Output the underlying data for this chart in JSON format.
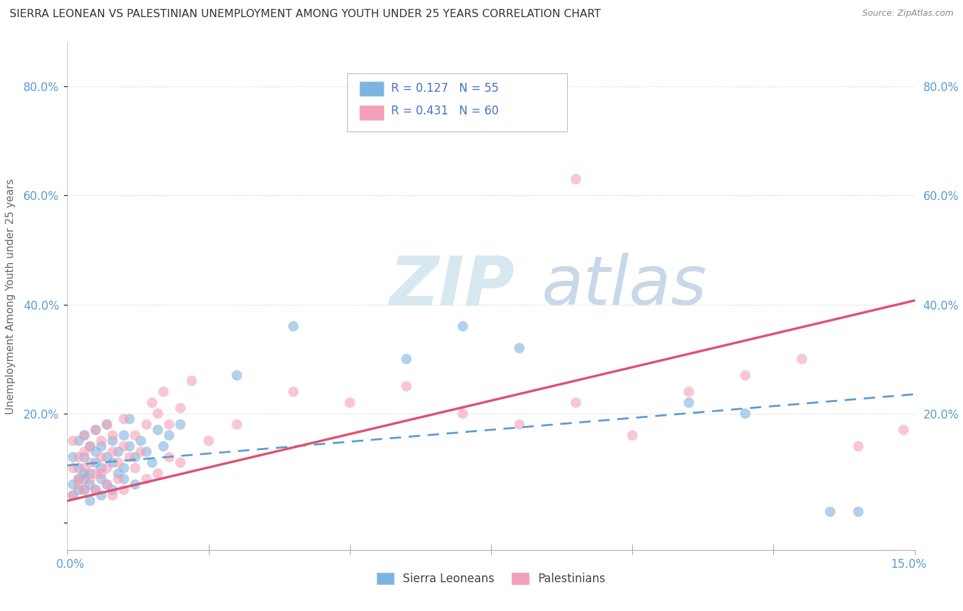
{
  "title": "SIERRA LEONEAN VS PALESTINIAN UNEMPLOYMENT AMONG YOUTH UNDER 25 YEARS CORRELATION CHART",
  "source": "Source: ZipAtlas.com",
  "ylabel": "Unemployment Among Youth under 25 years",
  "xlim": [
    0.0,
    0.15
  ],
  "ylim": [
    -0.05,
    0.88
  ],
  "yticks": [
    0.0,
    0.2,
    0.4,
    0.6,
    0.8
  ],
  "ytick_labels": [
    "",
    "20.0%",
    "40.0%",
    "60.0%",
    "80.0%"
  ],
  "sierra_color": "#7db3e0",
  "palestinian_color": "#f4a0b8",
  "sierra_line_color": "#5b9bd5",
  "palestinian_line_color": "#e05070",
  "sierra_R": 0.127,
  "sierra_N": 55,
  "palestinian_R": 0.431,
  "palestinian_N": 60,
  "legend_color": "#4472c4",
  "watermark_zip": "ZIP",
  "watermark_atlas": "atlas",
  "sierra_intercept": 0.105,
  "sierra_slope": 0.87,
  "palestinian_intercept": 0.04,
  "palestinian_slope": 2.45
}
